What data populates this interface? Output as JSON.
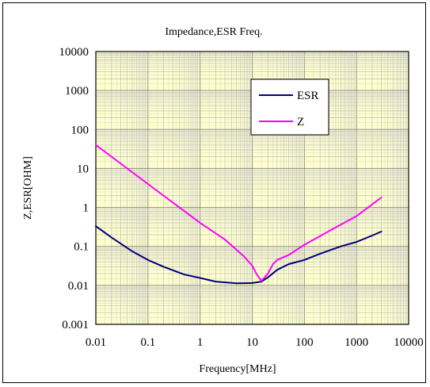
{
  "chart_data": {
    "type": "line",
    "title": "Impedance,ESR Freq.",
    "xlabel": "Frequency[MHz]",
    "ylabel": "Z,ESR[OHM]",
    "x_scale": "log",
    "y_scale": "log",
    "xlim": [
      0.01,
      10000
    ],
    "ylim": [
      0.001,
      10000
    ],
    "x_ticks": [
      "0.01",
      "0.1",
      "1",
      "10",
      "100",
      "1000",
      "10000"
    ],
    "y_ticks": [
      "0.001",
      "0.01",
      "0.1",
      "1",
      "10",
      "100",
      "1000",
      "10000"
    ],
    "grid": true,
    "plot_background": "#ffffcc",
    "legend_position": "top-right (inside plot)",
    "series": [
      {
        "name": "ESR",
        "color": "#000080",
        "points": [
          [
            0.01,
            0.33
          ],
          [
            0.02,
            0.17
          ],
          [
            0.05,
            0.075
          ],
          [
            0.1,
            0.045
          ],
          [
            0.2,
            0.03
          ],
          [
            0.5,
            0.019
          ],
          [
            1,
            0.0155
          ],
          [
            2,
            0.0125
          ],
          [
            5,
            0.0113
          ],
          [
            10,
            0.0115
          ],
          [
            15,
            0.0125
          ],
          [
            20,
            0.016
          ],
          [
            30,
            0.025
          ],
          [
            50,
            0.035
          ],
          [
            100,
            0.045
          ],
          [
            200,
            0.065
          ],
          [
            500,
            0.1
          ],
          [
            1000,
            0.13
          ],
          [
            2000,
            0.19
          ],
          [
            3000,
            0.24
          ]
        ]
      },
      {
        "name": "Z",
        "color": "#ff00ff",
        "points": [
          [
            0.01,
            40
          ],
          [
            0.1,
            4
          ],
          [
            1,
            0.4
          ],
          [
            3,
            0.15
          ],
          [
            7,
            0.055
          ],
          [
            10,
            0.032
          ],
          [
            12,
            0.02
          ],
          [
            15,
            0.013
          ],
          [
            20,
            0.02
          ],
          [
            25,
            0.035
          ],
          [
            30,
            0.045
          ],
          [
            50,
            0.06
          ],
          [
            100,
            0.11
          ],
          [
            300,
            0.25
          ],
          [
            1000,
            0.6
          ],
          [
            3000,
            1.8
          ]
        ]
      }
    ]
  }
}
